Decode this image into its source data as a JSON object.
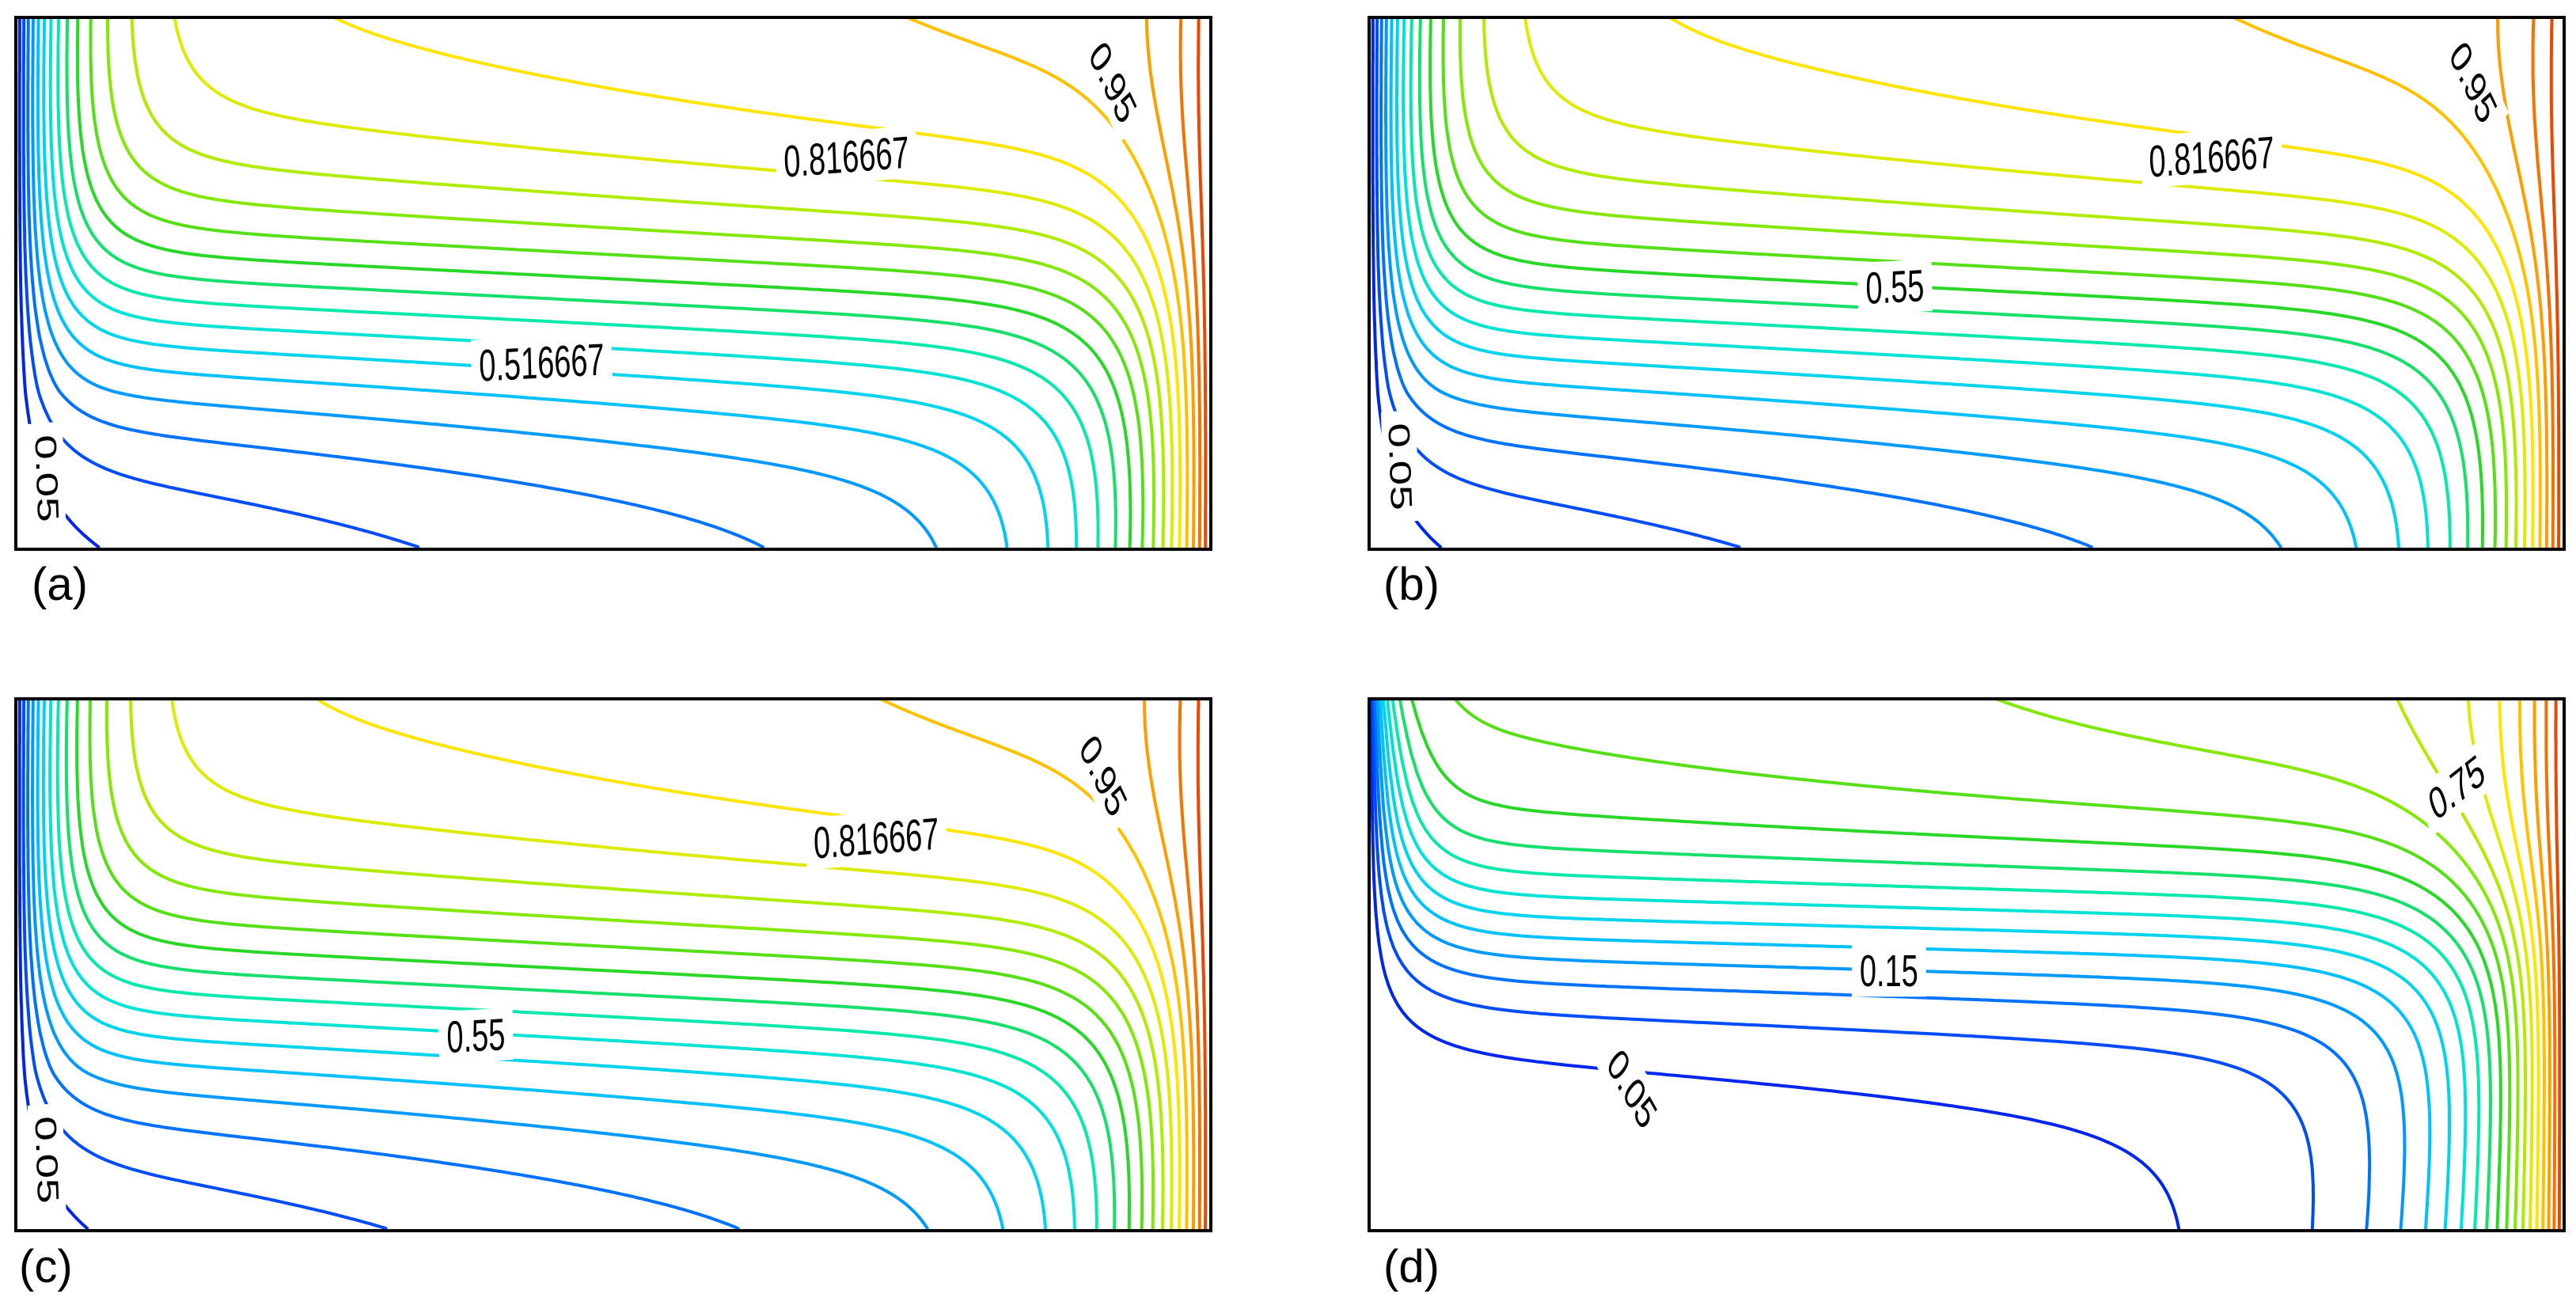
{
  "chart_data": [
    {
      "type": "contour",
      "panel_label": "(a)",
      "levels_min": 0.05,
      "levels_max": 1.0,
      "level_count": 20,
      "hot_wall": "right",
      "labels": [
        {
          "text": "0.95",
          "level": 0.95
        },
        {
          "text": "0.816667",
          "level": 0.816667
        },
        {
          "text": "0.516667",
          "level": 0.516667
        },
        {
          "text": "0.05",
          "level": 0.05
        }
      ]
    },
    {
      "type": "contour",
      "panel_label": "(b)",
      "levels_min": 0.05,
      "levels_max": 1.0,
      "level_count": 20,
      "hot_wall": "right",
      "labels": [
        {
          "text": "0.95",
          "level": 0.95
        },
        {
          "text": "0.816667",
          "level": 0.816667
        },
        {
          "text": "0.55",
          "level": 0.55
        },
        {
          "text": "0.05",
          "level": 0.05
        }
      ]
    },
    {
      "type": "contour",
      "panel_label": "(c)",
      "levels_min": 0.05,
      "levels_max": 1.0,
      "level_count": 20,
      "hot_wall": "right",
      "labels": [
        {
          "text": "0.95",
          "level": 0.95
        },
        {
          "text": "0.816667",
          "level": 0.816667
        },
        {
          "text": "0.55",
          "level": 0.55
        },
        {
          "text": "0.05",
          "level": 0.05
        }
      ]
    },
    {
      "type": "contour",
      "panel_label": "(d)",
      "levels_min": 0.05,
      "levels_max": 1.0,
      "level_count": 20,
      "hot_wall": "right",
      "labels": [
        {
          "text": "0.75",
          "level": 0.75
        },
        {
          "text": "0.15",
          "level": 0.15
        },
        {
          "text": "0.05",
          "level": 0.05
        }
      ]
    }
  ]
}
